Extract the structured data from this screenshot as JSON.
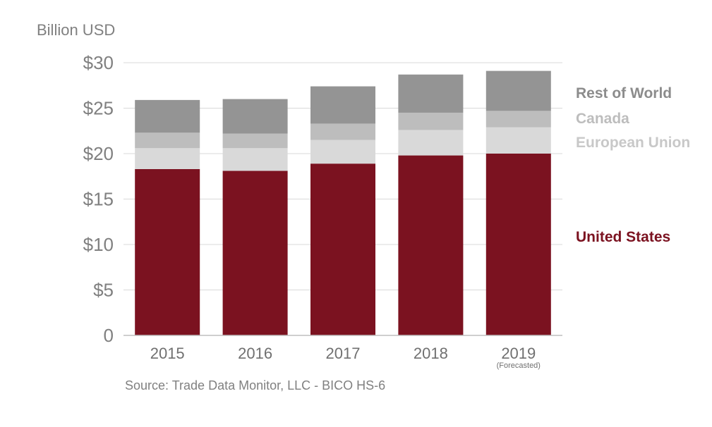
{
  "chart_data": {
    "type": "bar",
    "stacked": true,
    "ylabel": "Billion USD",
    "ylim": [
      0,
      30
    ],
    "yticks": [
      {
        "value": 0,
        "label": "0"
      },
      {
        "value": 5,
        "label": "$5"
      },
      {
        "value": 10,
        "label": "$10"
      },
      {
        "value": 15,
        "label": "$15"
      },
      {
        "value": 20,
        "label": "$20"
      },
      {
        "value": 25,
        "label": "$25"
      },
      {
        "value": 30,
        "label": "$30"
      }
    ],
    "categories": [
      "2015",
      "2016",
      "2017",
      "2018",
      "2019"
    ],
    "category_notes": [
      "",
      "",
      "",
      "",
      "(Forecasted)"
    ],
    "series": [
      {
        "name": "United States",
        "color": "#7b1220",
        "values": [
          18.3,
          18.1,
          18.9,
          19.8,
          20.0
        ]
      },
      {
        "name": "European Union",
        "color": "#d9d9d9",
        "values": [
          2.3,
          2.5,
          2.6,
          2.8,
          2.9
        ]
      },
      {
        "name": "Canada",
        "color": "#bdbdbd",
        "values": [
          1.7,
          1.6,
          1.8,
          1.9,
          1.8
        ]
      },
      {
        "name": "Rest of World",
        "color": "#949494",
        "values": [
          3.6,
          3.8,
          4.1,
          4.2,
          4.4
        ]
      }
    ],
    "legend_position": "right",
    "source": "Source: Trade Data Monitor, LLC - BICO HS-6"
  },
  "legend": {
    "rest_of_world": "Rest of World",
    "canada": "Canada",
    "european_union": "European Union",
    "united_states": "United States"
  },
  "colors": {
    "axis_text": "#808080",
    "gridline": "#d9d9d9",
    "united_states": "#7b1220",
    "european_union": "#d9d9d9",
    "canada": "#bdbdbd",
    "rest_of_world": "#949494"
  }
}
